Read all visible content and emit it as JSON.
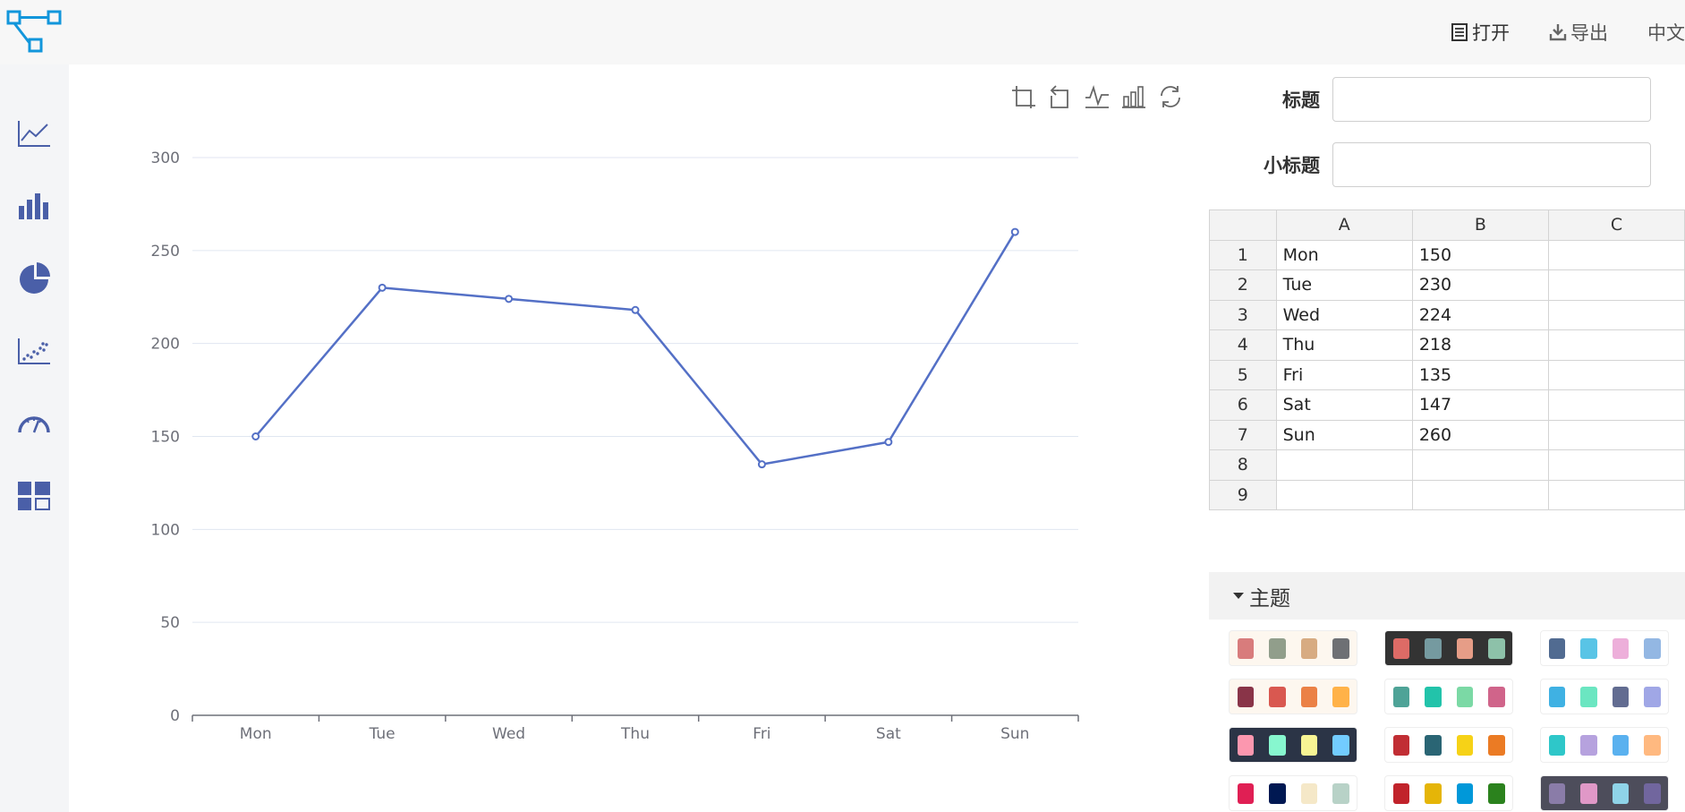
{
  "header": {
    "open_label": "打开",
    "export_label": "导出",
    "lang_label": "中文"
  },
  "form": {
    "title_label": "标题",
    "subtitle_label": "小标题",
    "title_value": "",
    "subtitle_value": ""
  },
  "sheet": {
    "columns": [
      "A",
      "B",
      "C"
    ],
    "rows": [
      [
        "1",
        "Mon",
        "150",
        ""
      ],
      [
        "2",
        "Tue",
        "230",
        ""
      ],
      [
        "3",
        "Wed",
        "224",
        ""
      ],
      [
        "4",
        "Thu",
        "218",
        ""
      ],
      [
        "5",
        "Fri",
        "135",
        ""
      ],
      [
        "6",
        "Sat",
        "147",
        ""
      ],
      [
        "7",
        "Sun",
        "260",
        ""
      ],
      [
        "8",
        "",
        "",
        ""
      ],
      [
        "9",
        "",
        "",
        ""
      ]
    ]
  },
  "theme": {
    "header_label": "主题",
    "swatches": [
      {
        "bg": "#fdf7ef",
        "colors": [
          "#d87c7c",
          "#919e8b",
          "#d7ab82",
          "#6e7074"
        ]
      },
      {
        "bg": "#333333",
        "colors": [
          "#dd6b66",
          "#759aa0",
          "#e69d87",
          "#8dc1a9"
        ]
      },
      {
        "bg": "#ffffff",
        "colors": [
          "#516b91",
          "#59c4e6",
          "#edafda",
          "#93b7e3"
        ]
      },
      {
        "bg": "#fdf7ef",
        "colors": [
          "#893448",
          "#d95850",
          "#eb8146",
          "#ffb248"
        ]
      },
      {
        "bg": "#ffffff",
        "colors": [
          "#4ea397",
          "#22c3aa",
          "#7bd9a5",
          "#d0648a"
        ]
      },
      {
        "bg": "#ffffff",
        "colors": [
          "#3fb1e3",
          "#6be6c1",
          "#626c91",
          "#a0a7e6"
        ]
      },
      {
        "bg": "#2b3446",
        "colors": [
          "#fc97af",
          "#87f7cf",
          "#f7f494",
          "#72ccff"
        ]
      },
      {
        "bg": "#ffffff",
        "colors": [
          "#c12e34",
          "#2a6574",
          "#f6d217",
          "#eb7b24"
        ]
      },
      {
        "bg": "#ffffff",
        "colors": [
          "#2ec7c9",
          "#b6a2de",
          "#5ab1ef",
          "#ffb980"
        ]
      },
      {
        "bg": "#ffffff",
        "colors": [
          "#e01f54",
          "#001852",
          "#f5e8c8",
          "#b8d2c7"
        ]
      },
      {
        "bg": "#ffffff",
        "colors": [
          "#c1232b",
          "#e5b508",
          "#0098d9",
          "#2b821d"
        ]
      },
      {
        "bg": "#4d4d5b",
        "colors": [
          "#8a7ca8",
          "#e098c7",
          "#8fd3e8",
          "#71669e"
        ]
      }
    ]
  },
  "sidebar": {
    "items": [
      "line-chart-icon",
      "bar-chart-icon",
      "pie-chart-icon",
      "scatter-chart-icon",
      "gauge-chart-icon",
      "dashboard-layout-icon"
    ]
  },
  "toolbar": {
    "items": [
      "zoom-select-icon",
      "zoom-reset-icon",
      "switch-line-icon",
      "switch-bar-icon",
      "restore-icon"
    ]
  },
  "colors": {
    "accent": "#1296db",
    "series": "#5470c6",
    "sidebar_icon": "#4a5fa8"
  },
  "chart_data": {
    "type": "line",
    "categories": [
      "Mon",
      "Tue",
      "Wed",
      "Thu",
      "Fri",
      "Sat",
      "Sun"
    ],
    "values": [
      150,
      230,
      224,
      218,
      135,
      147,
      260
    ],
    "ylim": [
      0,
      300
    ],
    "yticks": [
      0,
      50,
      100,
      150,
      200,
      250,
      300
    ],
    "grid": true,
    "title": "",
    "xlabel": "",
    "ylabel": ""
  }
}
